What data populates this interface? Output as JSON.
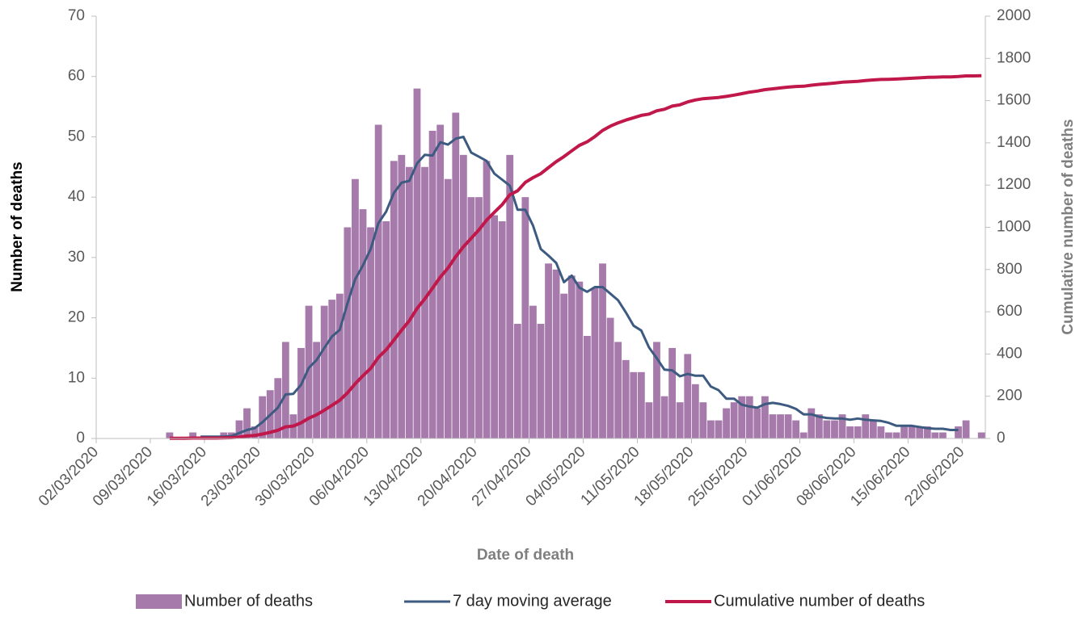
{
  "chart_data": {
    "type": "bar",
    "x_label": "Date of death",
    "y_label": "Number of deaths",
    "y2_label": "Cumulative number of deaths",
    "categories": [
      "02/03/2020",
      null,
      null,
      null,
      null,
      null,
      null,
      "09/03/2020",
      null,
      null,
      null,
      null,
      null,
      null,
      "16/03/2020",
      null,
      null,
      null,
      null,
      null,
      null,
      "23/03/2020",
      null,
      null,
      null,
      null,
      null,
      null,
      "30/03/2020",
      null,
      null,
      null,
      null,
      null,
      null,
      "06/04/2020",
      null,
      null,
      null,
      null,
      null,
      null,
      "13/04/2020",
      null,
      null,
      null,
      null,
      null,
      null,
      "20/04/2020",
      null,
      null,
      null,
      null,
      null,
      null,
      "27/04/2020",
      null,
      null,
      null,
      null,
      null,
      null,
      "04/05/2020",
      null,
      null,
      null,
      null,
      null,
      null,
      "11/05/2020",
      null,
      null,
      null,
      null,
      null,
      null,
      "18/05/2020",
      null,
      null,
      null,
      null,
      null,
      null,
      "25/05/2020",
      null,
      null,
      null,
      null,
      null,
      null,
      "01/06/2020",
      null,
      null,
      null,
      null,
      null,
      null,
      "08/06/2020",
      null,
      null,
      null,
      null,
      null,
      null,
      "15/06/2020",
      null,
      null,
      null,
      null,
      null,
      null,
      "22/06/2020",
      null,
      null
    ],
    "series": [
      {
        "name": "Number of deaths",
        "type": "bar",
        "color": "#a67aab",
        "values": [
          0,
          0,
          0,
          0,
          0,
          0,
          0,
          0,
          0,
          1,
          0,
          0,
          1,
          0,
          0,
          0,
          1,
          1,
          3,
          5,
          2,
          7,
          8,
          10,
          16,
          4,
          15,
          22,
          16,
          22,
          23,
          24,
          35,
          43,
          38,
          35,
          52,
          36,
          46,
          47,
          45,
          58,
          45,
          51,
          52,
          43,
          54,
          47,
          40,
          40,
          46,
          37,
          36,
          47,
          19,
          40,
          22,
          19,
          29,
          28,
          24,
          27,
          26,
          17,
          25,
          29,
          20,
          16,
          13,
          11,
          11,
          6,
          16,
          7,
          15,
          6,
          14,
          9,
          6,
          3,
          3,
          5,
          6,
          7,
          7,
          5,
          7,
          4,
          4,
          4,
          3,
          1,
          5,
          4,
          3,
          3,
          4,
          2,
          2,
          4,
          3,
          2,
          1,
          1,
          2,
          2,
          2,
          2,
          1,
          1,
          0,
          2,
          3,
          0,
          1
        ]
      },
      {
        "name": "7 day moving average",
        "type": "line",
        "color": "#3d5a80",
        "values": [
          null,
          null,
          null,
          null,
          null,
          null,
          null,
          null,
          null,
          null,
          null,
          null,
          null,
          0.3,
          0.3,
          0.3,
          0.3,
          0.4,
          0.9,
          1.4,
          1.7,
          2.7,
          3.9,
          5.1,
          7.3,
          7.4,
          8.9,
          11.7,
          13.0,
          15.0,
          16.9,
          18.0,
          22.4,
          26.4,
          28.7,
          31.4,
          35.7,
          37.6,
          40.7,
          42.4,
          42.7,
          45.6,
          47.0,
          46.9,
          49.1,
          48.7,
          49.7,
          50.0,
          47.4,
          46.7,
          46.0,
          43.9,
          42.9,
          41.9,
          37.9,
          37.9,
          35.3,
          31.4,
          30.3,
          29.1,
          25.9,
          27.0,
          25.0,
          24.3,
          25.1,
          25.1,
          24.0,
          22.9,
          20.9,
          18.7,
          17.9,
          15.1,
          13.3,
          11.4,
          11.3,
          10.3,
          10.7,
          10.4,
          10.4,
          8.6,
          8.0,
          6.6,
          6.6,
          5.6,
          5.3,
          5.1,
          5.7,
          5.9,
          5.7,
          5.4,
          4.9,
          4.0,
          4.0,
          3.6,
          3.4,
          3.3,
          3.3,
          3.1,
          3.3,
          3.1,
          3.0,
          2.9,
          2.6,
          2.1,
          2.1,
          2.1,
          1.9,
          1.7,
          1.6,
          1.6,
          1.4,
          1.4,
          null,
          null,
          null
        ]
      },
      {
        "name": "Cumulative number of deaths",
        "type": "line",
        "axis": "y2",
        "color": "#c0184a",
        "values": [
          null,
          null,
          null,
          null,
          null,
          null,
          null,
          null,
          null,
          1,
          1,
          1,
          2,
          2,
          2,
          2,
          3,
          4,
          7,
          12,
          14,
          21,
          29,
          39,
          55,
          59,
          74,
          96,
          112,
          134,
          157,
          181,
          216,
          259,
          297,
          332,
          384,
          420,
          466,
          513,
          558,
          616,
          661,
          712,
          764,
          807,
          861,
          908,
          948,
          988,
          1034,
          1071,
          1107,
          1154,
          1173,
          1213,
          1235,
          1254,
          1283,
          1311,
          1335,
          1362,
          1388,
          1405,
          1430,
          1459,
          1479,
          1495,
          1508,
          1519,
          1530,
          1536,
          1552,
          1559,
          1574,
          1580,
          1594,
          1603,
          1609,
          1612,
          1615,
          1620,
          1626,
          1633,
          1640,
          1645,
          1652,
          1656,
          1660,
          1664,
          1667,
          1668,
          1673,
          1677,
          1680,
          1683,
          1687,
          1689,
          1691,
          1695,
          1698,
          1700,
          1701,
          1702,
          1704,
          1706,
          1708,
          1710,
          1711,
          1712,
          1712,
          1714,
          1717,
          1717,
          1718
        ]
      }
    ],
    "ylim": [
      0,
      70
    ],
    "yticks": [
      0,
      10,
      20,
      30,
      40,
      50,
      60,
      70
    ],
    "y2lim": [
      0,
      2000
    ],
    "y2ticks": [
      0,
      200,
      400,
      600,
      800,
      1000,
      1200,
      1400,
      1600,
      1800,
      2000
    ],
    "grid": false,
    "legend": "bottom"
  }
}
